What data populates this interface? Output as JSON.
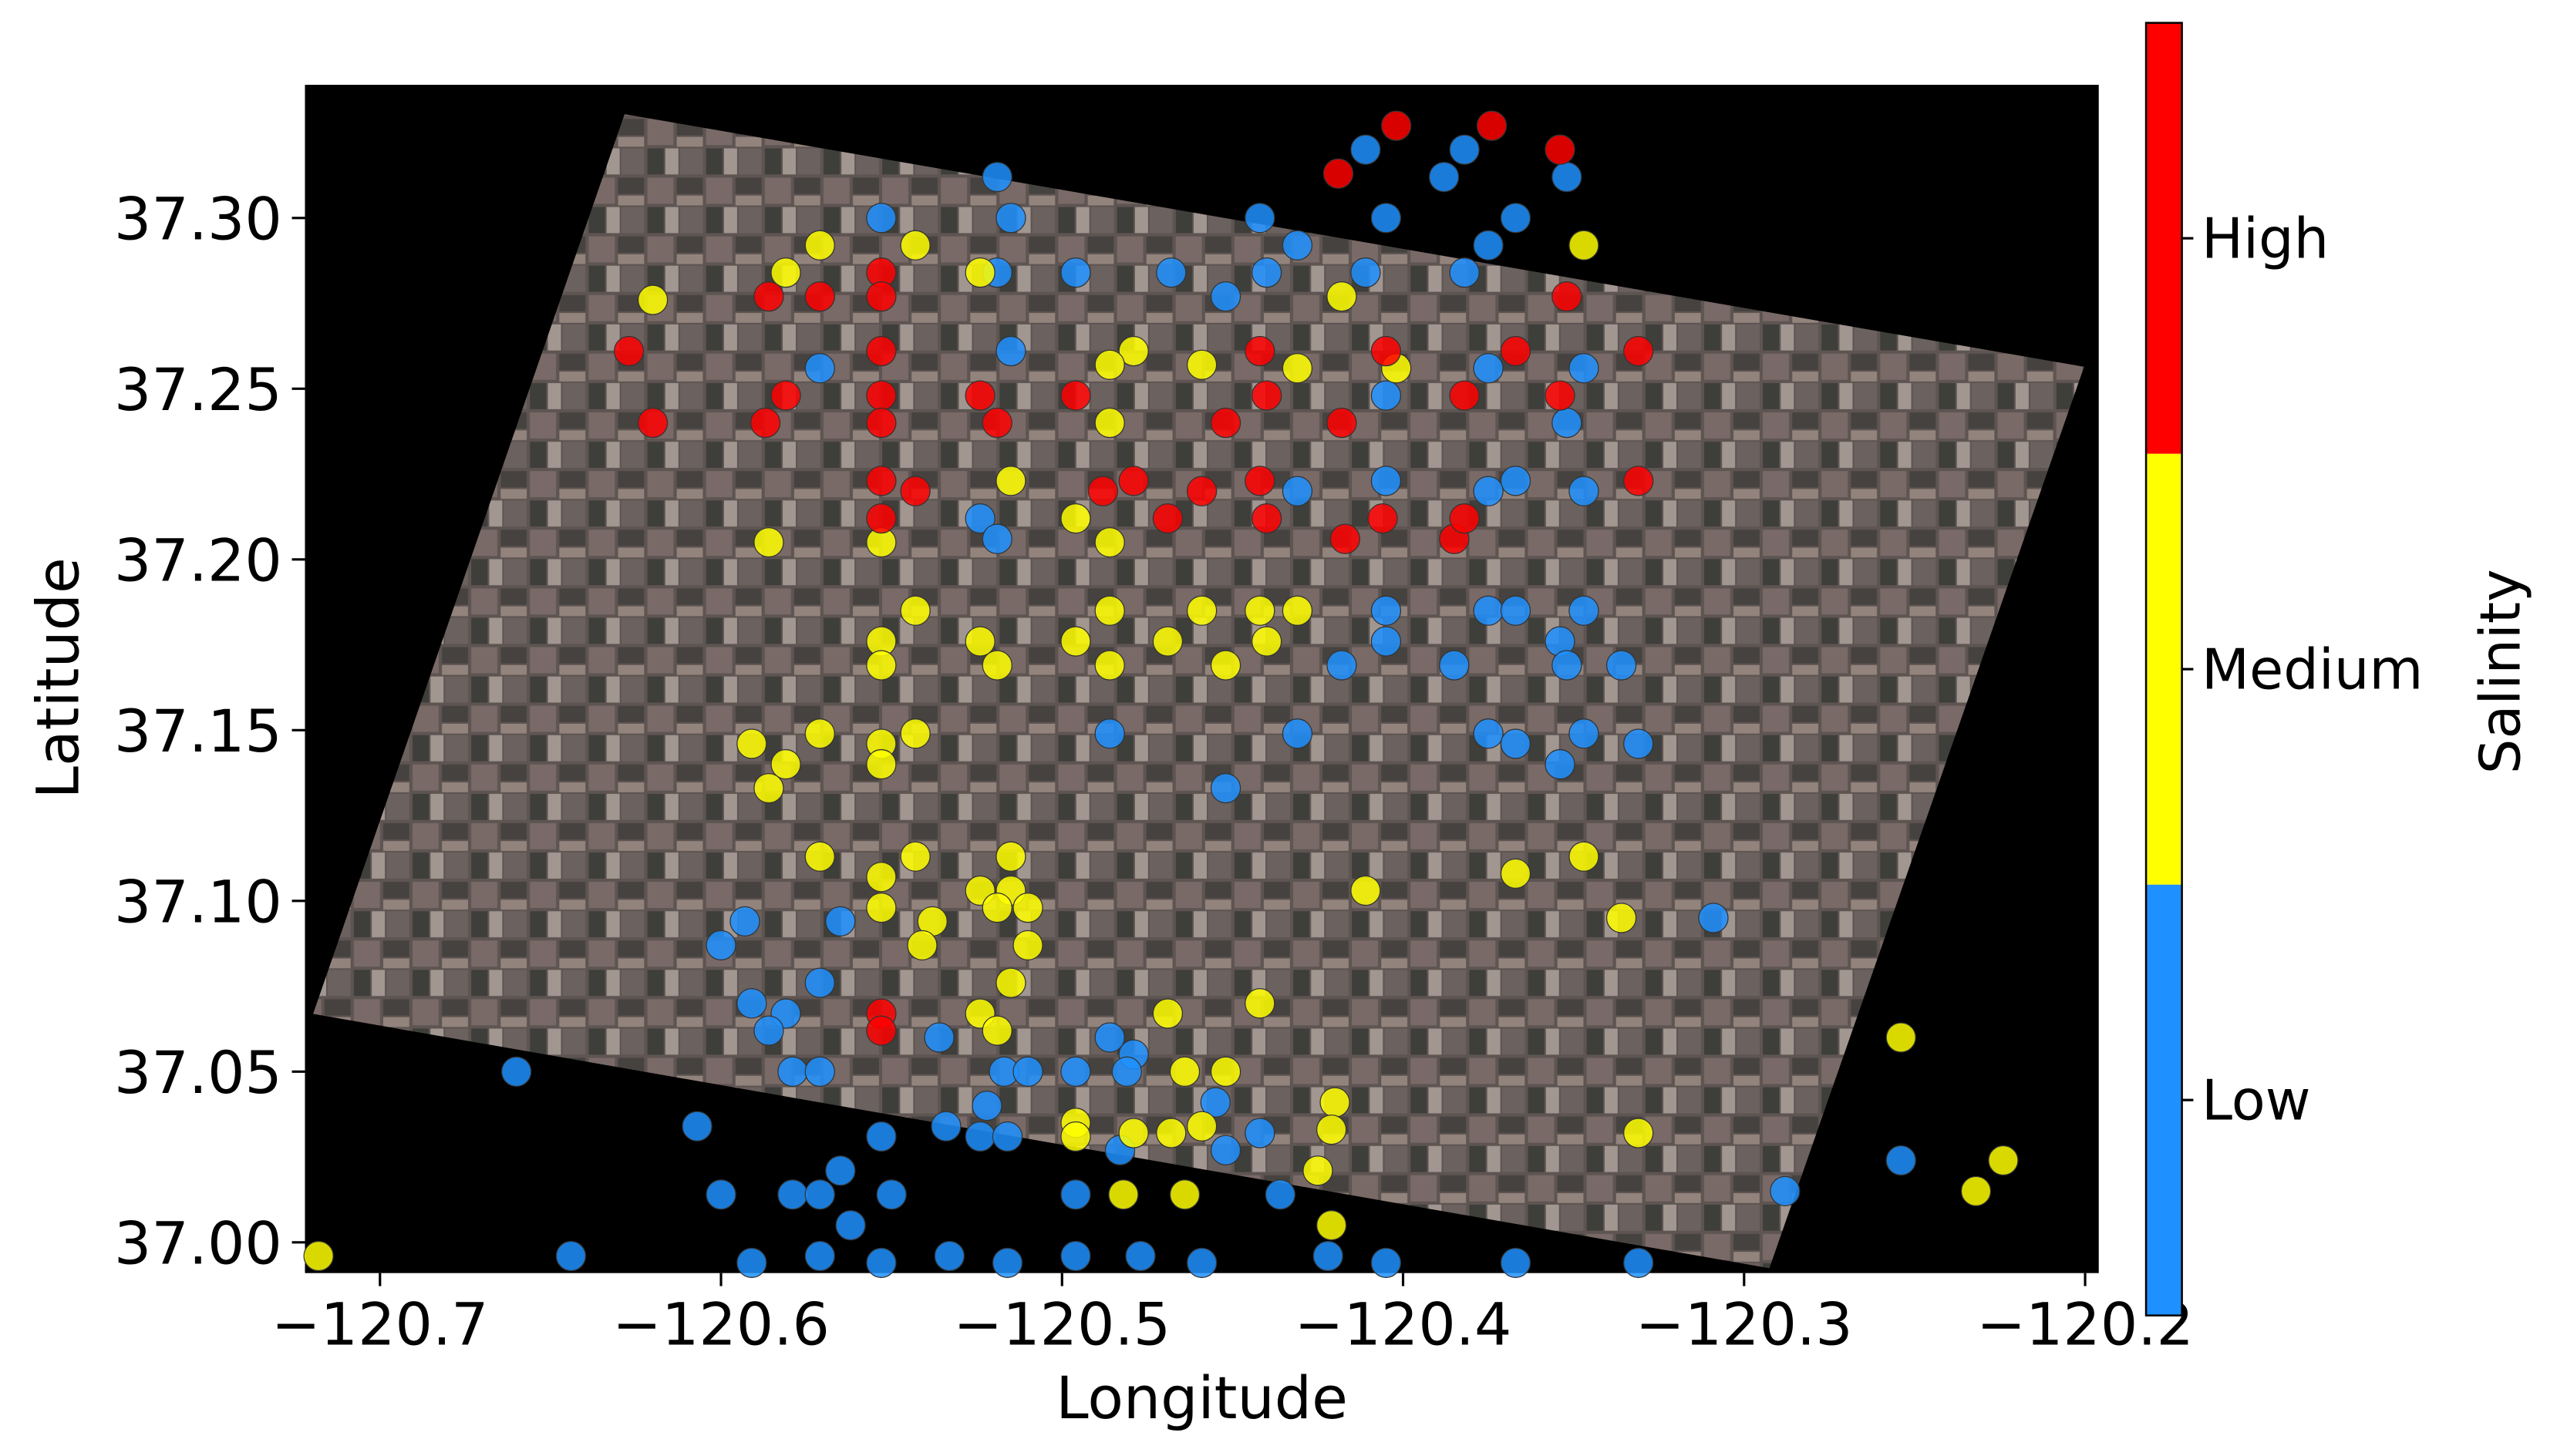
{
  "chart_data": {
    "type": "scatter",
    "x_label": "Longitude",
    "y_label": "Latitude",
    "colorbar_label": "Salinity",
    "xlim": [
      -120.722,
      -120.196
    ],
    "ylim": [
      36.991,
      37.339
    ],
    "xticks": [
      {
        "value": -120.7,
        "label": "−120.7"
      },
      {
        "value": -120.6,
        "label": "−120.6"
      },
      {
        "value": -120.5,
        "label": "−120.5"
      },
      {
        "value": -120.4,
        "label": "−120.4"
      },
      {
        "value": -120.3,
        "label": "−120.3"
      },
      {
        "value": -120.2,
        "label": "−120.2"
      }
    ],
    "yticks": [
      {
        "value": 37.0,
        "label": "37.00"
      },
      37.05,
      {
        "value": 37.1,
        "label": "37.10"
      },
      37.15,
      {
        "value": 37.2,
        "label": "37.20"
      },
      37.25,
      {
        "value": 37.3,
        "label": "37.30"
      }
    ],
    "series": [
      {
        "name": "Low",
        "color": "#1e90ff",
        "x": [
          -120.519,
          -120.515,
          -120.496,
          -120.519,
          -120.515,
          -120.553,
          -120.571,
          -120.468,
          -120.452,
          -120.442,
          -120.431,
          -120.44,
          -120.411,
          -120.405,
          -120.411,
          -120.382,
          -120.388,
          -120.367,
          -120.375,
          -120.382,
          -120.352,
          -120.347,
          -120.405,
          -120.375,
          -120.352,
          -120.367,
          -120.375,
          -120.347,
          -120.431,
          -120.405,
          -120.524,
          -120.519,
          -120.405,
          -120.405,
          -120.418,
          -120.385,
          -120.375,
          -120.367,
          -120.347,
          -120.354,
          -120.352,
          -120.336,
          -120.486,
          -120.452,
          -120.431,
          -120.375,
          -120.367,
          -120.354,
          -120.347,
          -120.331,
          -120.309,
          -120.6,
          -120.593,
          -120.565,
          -120.591,
          -120.581,
          -120.571,
          -120.586,
          -120.579,
          -120.571,
          -120.536,
          -120.522,
          -120.517,
          -120.51,
          -120.486,
          -120.479,
          -120.496,
          -120.481,
          -120.534,
          -120.524,
          -120.516,
          -120.553,
          -120.483,
          -120.455,
          -120.442,
          -120.452,
          -120.66,
          -120.607,
          -120.6,
          -120.579,
          -120.565,
          -120.571,
          -120.55,
          -120.562,
          -120.644,
          -120.591,
          -120.571,
          -120.553,
          -120.533,
          -120.516,
          -120.496,
          -120.477,
          -120.459,
          -120.436,
          -120.422,
          -120.405,
          -120.367,
          -120.331,
          -120.288,
          -120.254,
          -120.496
        ],
        "values": [
          37.312,
          37.3,
          37.284,
          37.284,
          37.261,
          37.3,
          37.256,
          37.284,
          37.277,
          37.3,
          37.292,
          37.284,
          37.32,
          37.3,
          37.284,
          37.32,
          37.312,
          37.3,
          37.292,
          37.284,
          37.312,
          37.256,
          37.248,
          37.256,
          37.24,
          37.223,
          37.22,
          37.22,
          37.22,
          37.223,
          37.212,
          37.206,
          37.185,
          37.176,
          37.169,
          37.169,
          37.185,
          37.185,
          37.185,
          37.176,
          37.169,
          37.169,
          37.149,
          37.133,
          37.149,
          37.149,
          37.146,
          37.14,
          37.149,
          37.146,
          37.095,
          37.087,
          37.094,
          37.094,
          37.07,
          37.067,
          37.076,
          37.062,
          37.05,
          37.05,
          37.06,
          37.04,
          37.05,
          37.05,
          37.06,
          37.055,
          37.05,
          37.05,
          37.034,
          37.031,
          37.031,
          37.031,
          37.027,
          37.041,
          37.032,
          37.027,
          37.05,
          37.034,
          37.014,
          37.014,
          37.021,
          37.014,
          37.014,
          37.005,
          36.996,
          36.994,
          36.996,
          36.994,
          36.996,
          36.994,
          36.996,
          36.996,
          36.994,
          37.014,
          36.996,
          36.994,
          36.994,
          36.994,
          37.015,
          37.024,
          37.014
        ]
      },
      {
        "name": "Medium",
        "color": "#ffff00",
        "x": [
          -120.62,
          -120.581,
          -120.571,
          -120.543,
          -120.524,
          -120.515,
          -120.479,
          -120.486,
          -120.486,
          -120.459,
          -120.431,
          -120.418,
          -120.402,
          -120.347,
          -120.586,
          -120.553,
          -120.496,
          -120.486,
          -120.543,
          -120.553,
          -120.553,
          -120.524,
          -120.519,
          -120.496,
          -120.486,
          -120.486,
          -120.469,
          -120.459,
          -120.452,
          -120.442,
          -120.431,
          -120.44,
          -120.591,
          -120.581,
          -120.586,
          -120.571,
          -120.553,
          -120.543,
          -120.553,
          -120.571,
          -120.553,
          -120.543,
          -120.524,
          -120.515,
          -120.515,
          -120.51,
          -120.519,
          -120.553,
          -120.538,
          -120.541,
          -120.51,
          -120.515,
          -120.524,
          -120.519,
          -120.469,
          -120.442,
          -120.464,
          -120.452,
          -120.411,
          -120.367,
          -120.347,
          -120.336,
          -120.496,
          -120.496,
          -120.479,
          -120.468,
          -120.459,
          -120.42,
          -120.421,
          -120.425,
          -120.482,
          -120.464,
          -120.421,
          -120.331,
          -120.718,
          -120.254,
          -120.224,
          -120.232
        ],
        "values": [
          37.276,
          37.284,
          37.292,
          37.292,
          37.284,
          37.223,
          37.261,
          37.257,
          37.24,
          37.257,
          37.256,
          37.277,
          37.256,
          37.292,
          37.205,
          37.205,
          37.212,
          37.205,
          37.185,
          37.176,
          37.169,
          37.176,
          37.169,
          37.176,
          37.185,
          37.169,
          37.176,
          37.185,
          37.169,
          37.185,
          37.185,
          37.176,
          37.146,
          37.14,
          37.133,
          37.149,
          37.146,
          37.149,
          37.14,
          37.113,
          37.107,
          37.113,
          37.103,
          37.113,
          37.103,
          37.098,
          37.098,
          37.098,
          37.094,
          37.087,
          37.087,
          37.076,
          37.067,
          37.062,
          37.067,
          37.07,
          37.05,
          37.05,
          37.103,
          37.108,
          37.113,
          37.095,
          37.035,
          37.031,
          37.032,
          37.032,
          37.034,
          37.041,
          37.033,
          37.021,
          37.014,
          37.014,
          37.005,
          37.032,
          36.996,
          37.06,
          37.024,
          37.015
        ]
      },
      {
        "name": "High",
        "color": "#ff0000",
        "x": [
          -120.419,
          -120.402,
          -120.374,
          -120.354,
          -120.627,
          -120.62,
          -120.586,
          -120.587,
          -120.581,
          -120.571,
          -120.553,
          -120.553,
          -120.553,
          -120.553,
          -120.553,
          -120.553,
          -120.553,
          -120.543,
          -120.524,
          -120.519,
          -120.496,
          -120.488,
          -120.479,
          -120.469,
          -120.459,
          -120.452,
          -120.442,
          -120.44,
          -120.442,
          -120.44,
          -120.418,
          -120.417,
          -120.405,
          -120.406,
          -120.382,
          -120.385,
          -120.382,
          -120.367,
          -120.354,
          -120.352,
          -120.331,
          -120.331,
          -120.553,
          -120.553
        ],
        "values": [
          37.313,
          37.327,
          37.327,
          37.32,
          37.261,
          37.24,
          37.277,
          37.24,
          37.248,
          37.277,
          37.284,
          37.277,
          37.261,
          37.248,
          37.24,
          37.223,
          37.212,
          37.22,
          37.248,
          37.24,
          37.248,
          37.22,
          37.223,
          37.212,
          37.22,
          37.24,
          37.261,
          37.248,
          37.223,
          37.212,
          37.24,
          37.206,
          37.261,
          37.212,
          37.248,
          37.206,
          37.212,
          37.261,
          37.248,
          37.277,
          37.261,
          37.223,
          37.067,
          37.062
        ]
      }
    ]
  }
}
